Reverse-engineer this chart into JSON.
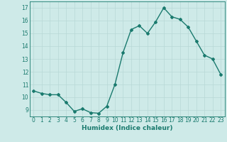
{
  "title": "",
  "xlabel": "Humidex (Indice chaleur)",
  "ylabel": "",
  "x": [
    0,
    1,
    2,
    3,
    4,
    5,
    6,
    7,
    8,
    9,
    10,
    11,
    12,
    13,
    14,
    15,
    16,
    17,
    18,
    19,
    20,
    21,
    22,
    23
  ],
  "y": [
    10.5,
    10.3,
    10.2,
    10.2,
    9.6,
    8.9,
    9.1,
    8.8,
    8.75,
    9.3,
    11.0,
    13.5,
    15.3,
    15.6,
    15.0,
    15.9,
    17.0,
    16.3,
    16.1,
    15.5,
    14.4,
    13.3,
    13.0,
    11.8
  ],
  "line_color": "#1a7a6e",
  "marker": "D",
  "marker_size": 2.0,
  "bg_color": "#ceeae8",
  "grid_color": "#b8d8d6",
  "axis_color": "#1a7a6e",
  "ylim": [
    8.5,
    17.5
  ],
  "xlim": [
    -0.5,
    23.5
  ],
  "yticks": [
    9,
    10,
    11,
    12,
    13,
    14,
    15,
    16,
    17
  ],
  "xticks": [
    0,
    1,
    2,
    3,
    4,
    5,
    6,
    7,
    8,
    9,
    10,
    11,
    12,
    13,
    14,
    15,
    16,
    17,
    18,
    19,
    20,
    21,
    22,
    23
  ],
  "tick_fontsize": 5.5,
  "label_fontsize": 6.5,
  "line_width": 1.0
}
